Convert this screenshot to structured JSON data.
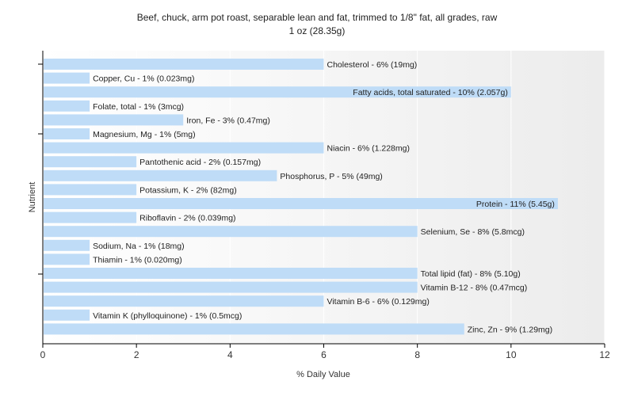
{
  "chart_data": {
    "type": "bar",
    "orientation": "horizontal",
    "title": "Beef, chuck, arm pot roast, separable lean and fat, trimmed to 1/8\" fat, all grades, raw",
    "subtitle": "1 oz (28.35g)",
    "xlabel": "% Daily Value",
    "ylabel": "Nutrient",
    "xlim": [
      0,
      12
    ],
    "xticks": [
      "0",
      "2",
      "4",
      "6",
      "8",
      "10",
      "12"
    ],
    "grid": true,
    "bar_color": "#bfdcf7",
    "categories": [
      "Cholesterol",
      "Copper, Cu",
      "Fatty acids, total saturated",
      "Folate, total",
      "Iron, Fe",
      "Magnesium, Mg",
      "Niacin",
      "Pantothenic acid",
      "Phosphorus, P",
      "Potassium, K",
      "Protein",
      "Riboflavin",
      "Selenium, Se",
      "Sodium, Na",
      "Thiamin",
      "Total lipid (fat)",
      "Vitamin B-12",
      "Vitamin B-6",
      "Vitamin K (phylloquinone)",
      "Zinc, Zn"
    ],
    "values": [
      6,
      1,
      10,
      1,
      3,
      1,
      6,
      2,
      5,
      2,
      11,
      2,
      8,
      1,
      1,
      8,
      8,
      6,
      1,
      9
    ],
    "labels": [
      "Cholesterol - 6% (19mg)",
      "Copper, Cu - 1% (0.023mg)",
      "Fatty acids, total saturated - 10% (2.057g)",
      "Folate, total - 1% (3mcg)",
      "Iron, Fe - 3% (0.47mg)",
      "Magnesium, Mg - 1% (5mg)",
      "Niacin - 6% (1.228mg)",
      "Pantothenic acid - 2% (0.157mg)",
      "Phosphorus, P - 5% (49mg)",
      "Potassium, K - 2% (82mg)",
      "Protein - 11% (5.45g)",
      "Riboflavin - 2% (0.039mg)",
      "Selenium, Se - 8% (5.8mcg)",
      "Sodium, Na - 1% (18mg)",
      "Thiamin - 1% (0.020mg)",
      "Total lipid (fat) - 8% (5.10g)",
      "Vitamin B-12 - 8% (0.47mcg)",
      "Vitamin B-6 - 6% (0.129mg)",
      "Vitamin K (phylloquinone) - 1% (0.5mcg)",
      "Zinc, Zn - 9% (1.29mg)"
    ]
  }
}
